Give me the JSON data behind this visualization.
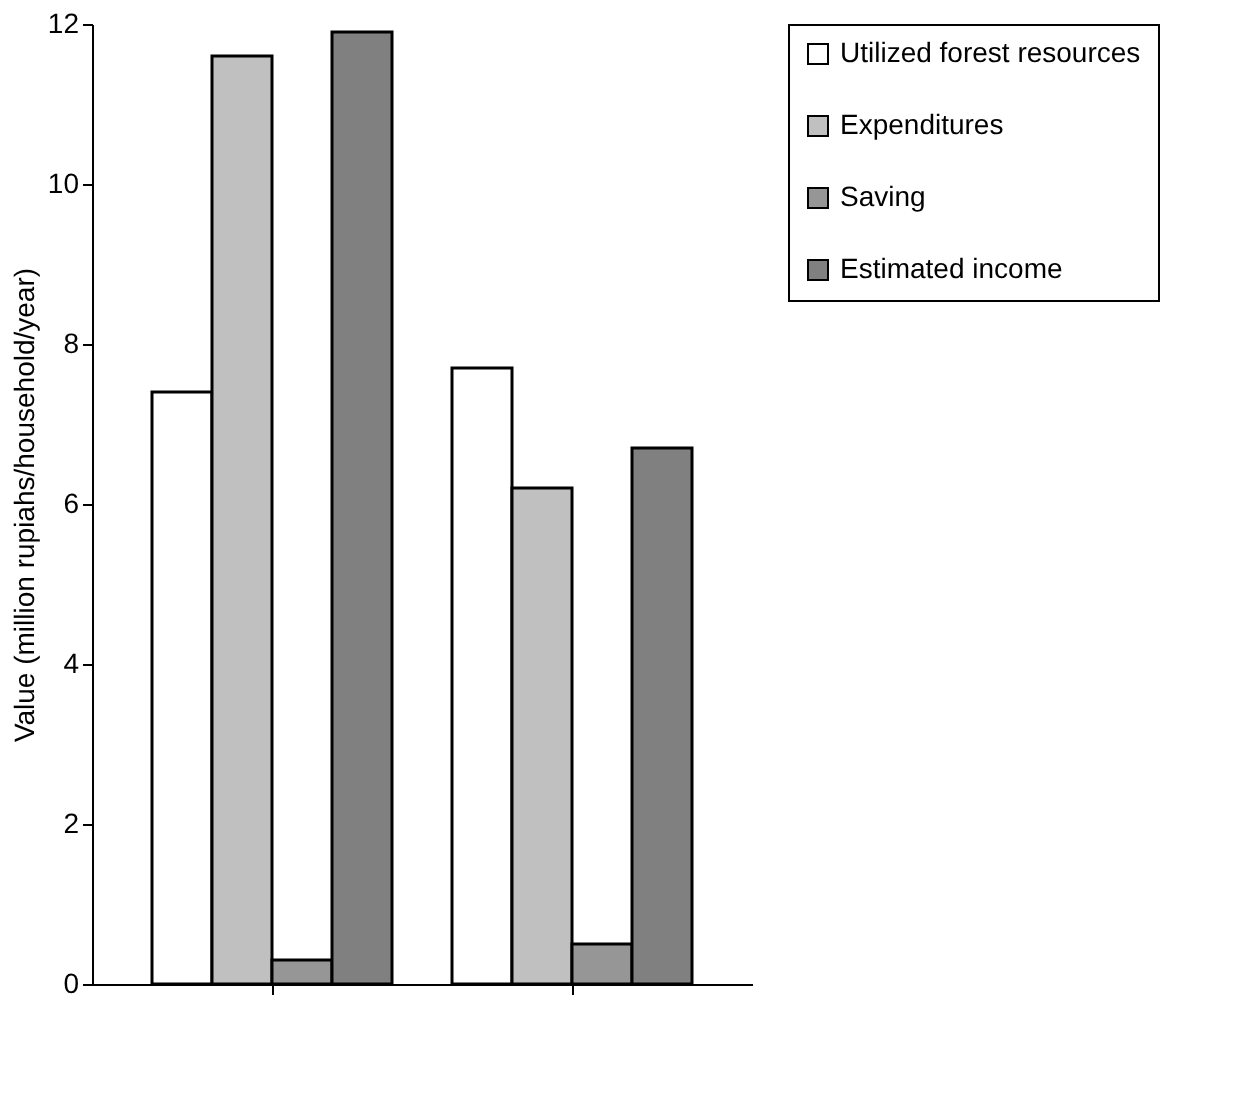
{
  "chart_data": {
    "type": "bar",
    "ylabel": "Value (million rupiahs/household/year)",
    "categories": [
      null,
      null
    ],
    "series": [
      {
        "name": "Utilized forest resources",
        "color": "#ffffff",
        "values": [
          7.4,
          7.7
        ]
      },
      {
        "name": "Expenditures",
        "color": "#c0c0c0",
        "values": [
          11.6,
          6.2
        ]
      },
      {
        "name": "Saving",
        "color": "#969696",
        "values": [
          0.3,
          0.5
        ]
      },
      {
        "name": "Estimated income",
        "color": "#808080",
        "values": [
          11.9,
          6.7
        ]
      }
    ],
    "ylim": [
      0,
      12
    ],
    "yticks": [
      0,
      2,
      4,
      6,
      8,
      10,
      12
    ],
    "grid": false,
    "legend": "right"
  }
}
